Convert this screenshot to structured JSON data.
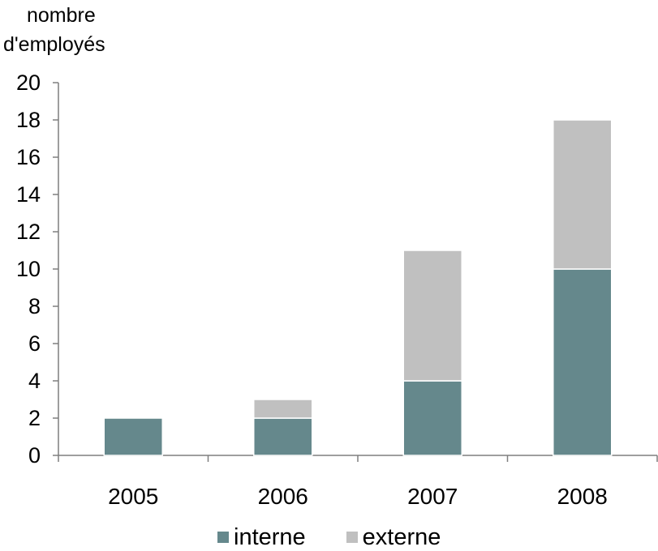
{
  "chart_data": {
    "type": "bar",
    "stacked": true,
    "title": "",
    "xlabel": "",
    "ylabel_lines": [
      "nombre",
      "d'employés"
    ],
    "categories": [
      "2005",
      "2006",
      "2007",
      "2008"
    ],
    "series": [
      {
        "name": "interne",
        "values": [
          2,
          2,
          4,
          10
        ],
        "color": "#65888C"
      },
      {
        "name": "externe",
        "values": [
          0,
          1,
          7,
          8
        ],
        "color": "#C0C0C0"
      }
    ],
    "ylim": [
      0,
      20
    ],
    "yticks": [
      0,
      2,
      4,
      6,
      8,
      10,
      12,
      14,
      16,
      18,
      20
    ],
    "grid": false,
    "legend_position": "bottom"
  }
}
